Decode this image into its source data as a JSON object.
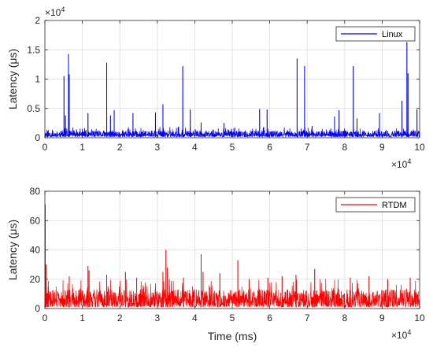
{
  "chart_data": [
    {
      "type": "line",
      "title": "",
      "xlabel": "",
      "ylabel": "Latency (μs)",
      "xlim": [
        0,
        100000
      ],
      "ylim": [
        0,
        20000
      ],
      "x_exponent_label": "×10^4",
      "y_exponent_label": "×10^4",
      "x_ticks": [
        0,
        10000,
        20000,
        30000,
        40000,
        50000,
        60000,
        70000,
        80000,
        90000,
        100000
      ],
      "x_tick_labels": [
        "0",
        "1",
        "2",
        "3",
        "4",
        "5",
        "6",
        "7",
        "8",
        "9",
        "10"
      ],
      "y_ticks": [
        0,
        5000,
        10000,
        15000,
        20000
      ],
      "y_tick_labels": [
        "0",
        "0.5",
        "1",
        "1.5",
        "2"
      ],
      "grid": true,
      "legend_position": "top-right",
      "color": "#0000ff",
      "series": [
        {
          "name": "Linux",
          "baseline_min": 150,
          "baseline_max": 1200,
          "spikes": [
            {
              "x": 5100,
              "y": 10500
            },
            {
              "x": 5500,
              "y": 3800
            },
            {
              "x": 6300,
              "y": 14300
            },
            {
              "x": 6500,
              "y": 10800
            },
            {
              "x": 11500,
              "y": 4200
            },
            {
              "x": 16500,
              "y": 12800
            },
            {
              "x": 17500,
              "y": 3800
            },
            {
              "x": 18500,
              "y": 4700
            },
            {
              "x": 23500,
              "y": 4200
            },
            {
              "x": 29500,
              "y": 4300
            },
            {
              "x": 31500,
              "y": 5700
            },
            {
              "x": 35700,
              "y": 1900
            },
            {
              "x": 36800,
              "y": 12200
            },
            {
              "x": 38800,
              "y": 4800
            },
            {
              "x": 41700,
              "y": 2600
            },
            {
              "x": 47800,
              "y": 2500
            },
            {
              "x": 49800,
              "y": 1500
            },
            {
              "x": 53500,
              "y": 1200
            },
            {
              "x": 57300,
              "y": 4900
            },
            {
              "x": 59300,
              "y": 4800
            },
            {
              "x": 67300,
              "y": 13500
            },
            {
              "x": 69300,
              "y": 12200
            },
            {
              "x": 71300,
              "y": 2000
            },
            {
              "x": 77300,
              "y": 3600
            },
            {
              "x": 78500,
              "y": 4700
            },
            {
              "x": 82300,
              "y": 12200
            },
            {
              "x": 83300,
              "y": 3300
            },
            {
              "x": 89300,
              "y": 4200
            },
            {
              "x": 95300,
              "y": 6300
            },
            {
              "x": 96600,
              "y": 16300
            },
            {
              "x": 96900,
              "y": 11000
            },
            {
              "x": 99300,
              "y": 4800
            }
          ]
        }
      ]
    },
    {
      "type": "line",
      "title": "",
      "xlabel": "Time (ms)",
      "ylabel": "Latency (μs)",
      "xlim": [
        0,
        100000
      ],
      "ylim": [
        0,
        80
      ],
      "x_exponent_label": "×10^4",
      "x_ticks": [
        0,
        10000,
        20000,
        30000,
        40000,
        50000,
        60000,
        70000,
        80000,
        90000,
        100000
      ],
      "x_tick_labels": [
        "0",
        "1",
        "2",
        "3",
        "4",
        "5",
        "6",
        "7",
        "8",
        "9",
        "10"
      ],
      "y_ticks": [
        0,
        20,
        40,
        60,
        80
      ],
      "y_tick_labels": [
        "0",
        "20",
        "40",
        "60",
        "80"
      ],
      "grid": true,
      "legend_position": "top-right",
      "color": "#ff0000",
      "series": [
        {
          "name": "RTDM",
          "baseline_min": 1,
          "baseline_max": 13,
          "spikes": [
            {
              "x": 100,
              "y": 71
            },
            {
              "x": 300,
              "y": 30
            },
            {
              "x": 900,
              "y": 15
            },
            {
              "x": 6500,
              "y": 22
            },
            {
              "x": 11500,
              "y": 29
            },
            {
              "x": 11800,
              "y": 26
            },
            {
              "x": 16500,
              "y": 23
            },
            {
              "x": 21500,
              "y": 25
            },
            {
              "x": 24500,
              "y": 21
            },
            {
              "x": 31500,
              "y": 25
            },
            {
              "x": 32300,
              "y": 40
            },
            {
              "x": 32700,
              "y": 28
            },
            {
              "x": 33200,
              "y": 20
            },
            {
              "x": 37000,
              "y": 21
            },
            {
              "x": 41700,
              "y": 37
            },
            {
              "x": 42200,
              "y": 25
            },
            {
              "x": 46700,
              "y": 24
            },
            {
              "x": 51500,
              "y": 33
            },
            {
              "x": 54500,
              "y": 20
            },
            {
              "x": 59500,
              "y": 21
            },
            {
              "x": 63300,
              "y": 22
            },
            {
              "x": 67000,
              "y": 23
            },
            {
              "x": 72000,
              "y": 27
            },
            {
              "x": 81500,
              "y": 21
            },
            {
              "x": 86500,
              "y": 22
            },
            {
              "x": 91500,
              "y": 20
            },
            {
              "x": 97500,
              "y": 21
            }
          ]
        }
      ]
    }
  ]
}
